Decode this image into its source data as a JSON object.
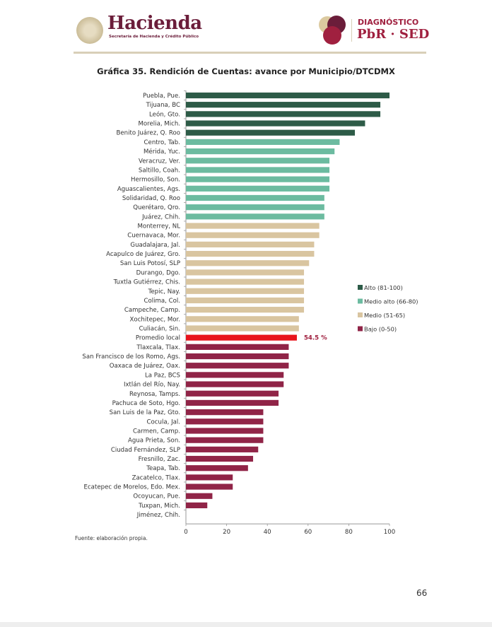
{
  "header": {
    "brand": "Hacienda",
    "brand_subtitle": "Secretaría de Hacienda y Crédito Público",
    "program_line1": "DIAGNÓSTICO",
    "program_line2": "PbR · SED"
  },
  "footer": {
    "source": "Fuente: elaboración propia.",
    "page_number": "66"
  },
  "chart_data": {
    "type": "bar",
    "orientation": "horizontal",
    "title": "Gráfica 35. Rendición de Cuentas: avance por Municipio/DTCDMX",
    "xlabel": "",
    "ylabel": "",
    "xlim": [
      0,
      100
    ],
    "xticks": [
      "0",
      "20",
      "40",
      "60",
      "80",
      "100"
    ],
    "grid": false,
    "legend_position": "right",
    "legend": [
      {
        "key": "alto",
        "label": "Alto (81-100)",
        "color": "#2d5b47"
      },
      {
        "key": "medio_alto",
        "label": "Medio alto (66-80)",
        "color": "#6cbba0"
      },
      {
        "key": "medio",
        "label": "Medio (51-65)",
        "color": "#d9c5a0"
      },
      {
        "key": "bajo",
        "label": "Bajo (0-50)",
        "color": "#902447"
      }
    ],
    "highlight": {
      "category": "Promedio local",
      "color": "#e8141c",
      "label": "54.5 %",
      "label_color": "#a0203f"
    },
    "categories": [
      "Puebla, Pue.",
      "Tijuana, BC",
      "León, Gto.",
      "Morelia, Mich.",
      "Benito Juárez, Q. Roo",
      "Centro, Tab.",
      "Mérida, Yuc.",
      "Veracruz, Ver.",
      "Saltillo, Coah.",
      "Hermosillo, Son.",
      "Aguascalientes, Ags.",
      "Solidaridad, Q. Roo",
      "Querétaro, Qro.",
      "Juárez, Chih.",
      "Monterrey, NL",
      "Cuernavaca, Mor.",
      "Guadalajara, Jal.",
      "Acapulco de Juárez, Gro.",
      "San Luis Potosí, SLP",
      "Durango, Dgo.",
      "Tuxtla Gutiérrez, Chis.",
      "Tepic, Nay.",
      "Colima, Col.",
      "Campeche, Camp.",
      "Xochitepec, Mor.",
      "Culiacán, Sin.",
      "Promedio local",
      "Tlaxcala, Tlax.",
      "San Francisco de los Romo, Ags.",
      "Oaxaca de Juárez, Oax.",
      "La Paz, BCS",
      "Ixtlán del Río, Nay.",
      "Reynosa, Tamps.",
      "Pachuca de Soto, Hgo.",
      "San Luis de la Paz, Gto.",
      "Cocula, Jal.",
      "Carmen, Camp.",
      "Agua Prieta, Son.",
      "Ciudad Fernández, SLP",
      "Fresnillo, Zac.",
      "Teapa, Tab.",
      "Zacatelco, Tlax.",
      "Ecatepec de Morelos, Edo. Mex.",
      "Ocoyucan, Pue.",
      "Tuxpan, Mich.",
      "Jiménez, Chih."
    ],
    "values": [
      100,
      95.5,
      95.5,
      88,
      83,
      75.5,
      73,
      70.5,
      70.5,
      70.5,
      70.5,
      68,
      68,
      68,
      65.5,
      65.5,
      63,
      63,
      60.5,
      58,
      58,
      58,
      58,
      58,
      55.5,
      55.5,
      54.5,
      50.5,
      50.5,
      50.5,
      48,
      48,
      45.5,
      45.5,
      38,
      38,
      38,
      38,
      35.5,
      33,
      30.5,
      23,
      23,
      13,
      10.5,
      0
    ],
    "groups": [
      "alto",
      "alto",
      "alto",
      "alto",
      "alto",
      "medio_alto",
      "medio_alto",
      "medio_alto",
      "medio_alto",
      "medio_alto",
      "medio_alto",
      "medio_alto",
      "medio_alto",
      "medio_alto",
      "medio",
      "medio",
      "medio",
      "medio",
      "medio",
      "medio",
      "medio",
      "medio",
      "medio",
      "medio",
      "medio",
      "medio",
      "promedio",
      "bajo",
      "bajo",
      "bajo",
      "bajo",
      "bajo",
      "bajo",
      "bajo",
      "bajo",
      "bajo",
      "bajo",
      "bajo",
      "bajo",
      "bajo",
      "bajo",
      "bajo",
      "bajo",
      "bajo",
      "bajo",
      "bajo"
    ]
  }
}
